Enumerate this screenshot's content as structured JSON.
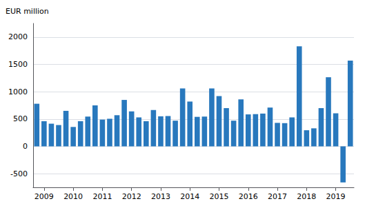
{
  "chart_data": {
    "type": "bar",
    "ylabel": "EUR million",
    "categories": [
      null,
      "2009",
      null,
      null,
      null,
      "2010",
      null,
      null,
      null,
      "2011",
      null,
      null,
      null,
      "2012",
      null,
      null,
      null,
      "2013",
      null,
      null,
      null,
      "2014",
      null,
      null,
      null,
      "2015",
      null,
      null,
      null,
      "2016",
      null,
      null,
      null,
      "2017",
      null,
      null,
      null,
      "2018",
      null,
      null,
      null,
      "2019",
      null,
      null
    ],
    "values": [
      780,
      460,
      415,
      390,
      650,
      355,
      460,
      545,
      750,
      490,
      505,
      570,
      850,
      640,
      530,
      460,
      665,
      550,
      555,
      470,
      1060,
      820,
      540,
      545,
      1060,
      920,
      700,
      470,
      860,
      585,
      590,
      600,
      710,
      430,
      425,
      530,
      1830,
      295,
      330,
      700,
      1265,
      605,
      -660,
      1570
    ],
    "color": "#2878BD",
    "ylim": [
      -750,
      2250
    ],
    "yticks": [
      -500,
      0,
      500,
      1000,
      1500,
      2000
    ],
    "grid": true
  }
}
